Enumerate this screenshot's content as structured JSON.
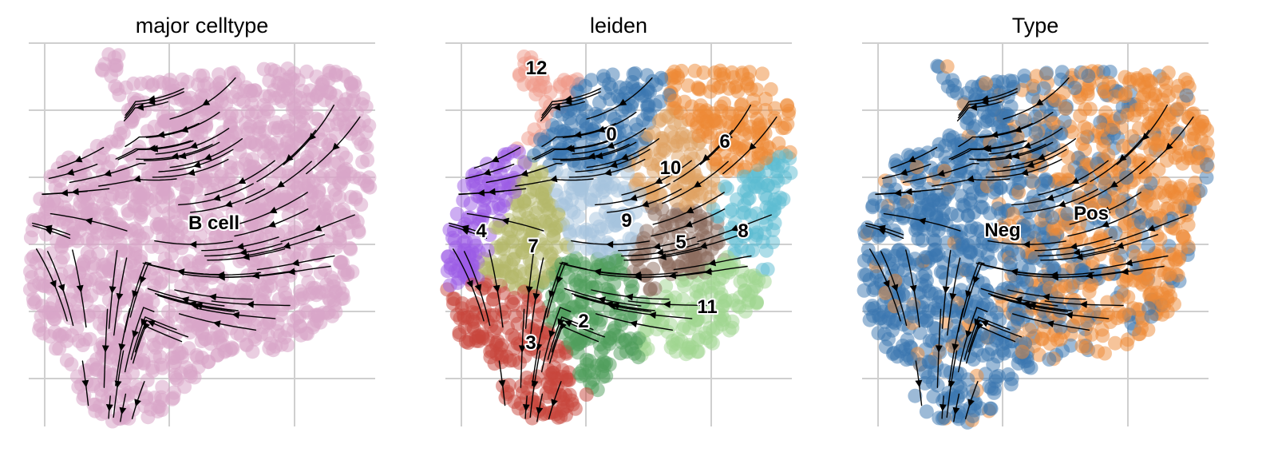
{
  "chart_data": [
    {
      "type": "scatter",
      "title": "major celltype",
      "labels": [
        "B cell"
      ],
      "legend": "on data",
      "colors": {
        "B cell": "#d8a6c9"
      },
      "overlay": "velocity stream arrows",
      "grid": true
    },
    {
      "type": "scatter",
      "title": "leiden",
      "labels": [
        "0",
        "2",
        "3",
        "4",
        "5",
        "6",
        "7",
        "8",
        "9",
        "10",
        "11",
        "12"
      ],
      "legend": "on data",
      "colors": {
        "0": "#3a76b0",
        "2": "#4f9e5c",
        "3": "#c8463c",
        "4": "#9b5ce6",
        "5": "#8c6b5e",
        "6": "#ee8a35",
        "7": "#b3b86a",
        "8": "#5bbcd1",
        "9": "#a6c3dd",
        "10": "#dfa162",
        "11": "#9fd68f",
        "12": "#ef9a8a"
      },
      "overlay": "velocity stream arrows",
      "grid": true
    },
    {
      "type": "scatter",
      "title": "Type",
      "labels": [
        "Neg",
        "Pos"
      ],
      "legend": "on data",
      "colors": {
        "Neg": "#3a76b0",
        "Pos": "#ee8a35"
      },
      "overlay": "velocity stream arrows",
      "grid": true
    }
  ]
}
